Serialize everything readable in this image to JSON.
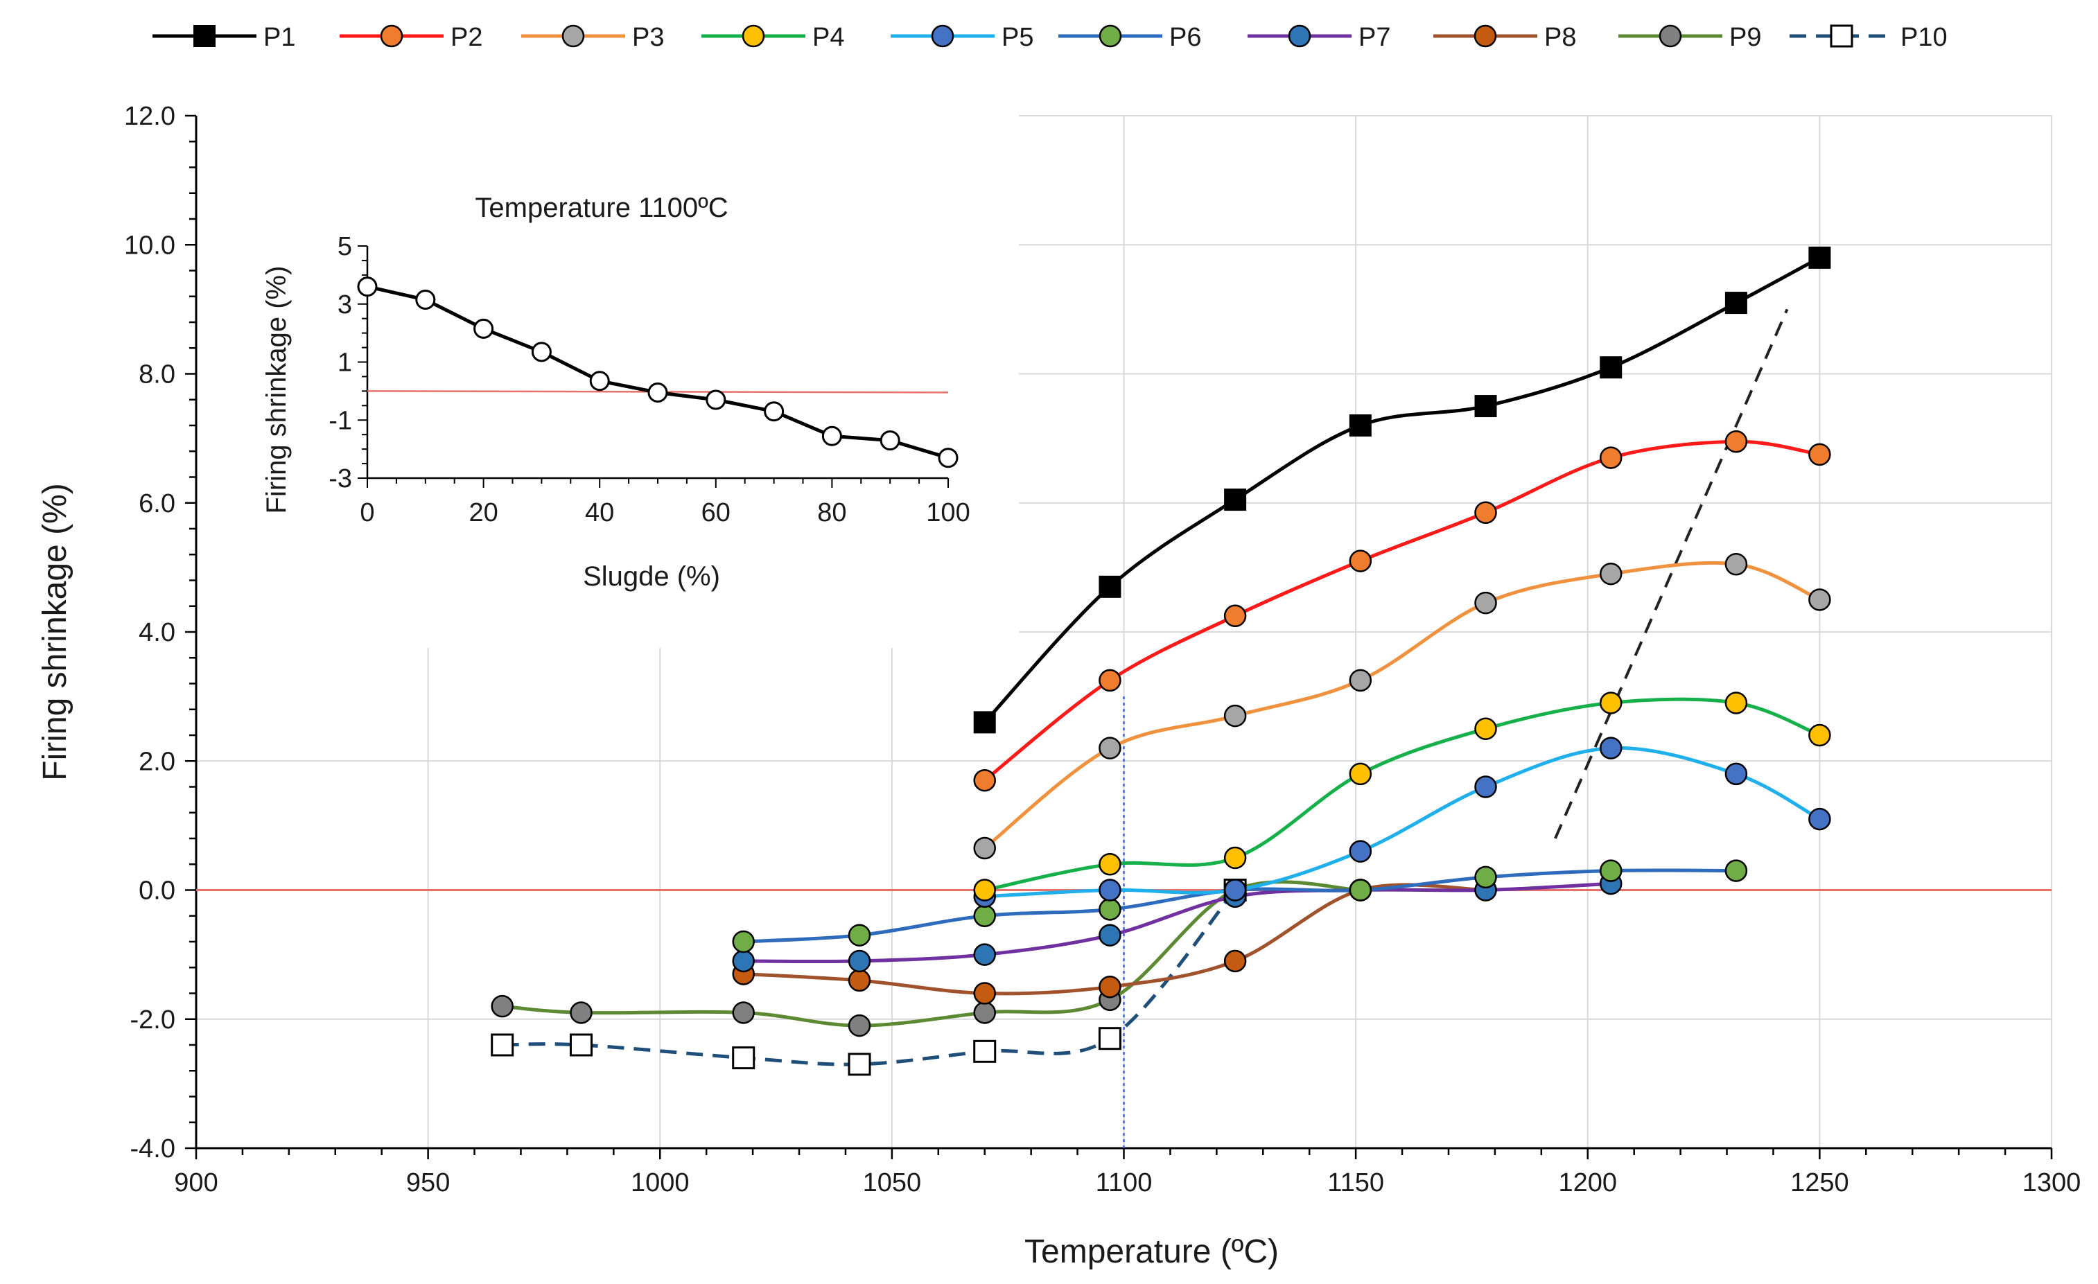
{
  "chart_data": [
    {
      "type": "line",
      "title": "",
      "xlabel": "Temperature   (ºC)",
      "ylabel": "Firing shrinkage   (%)",
      "xlim": [
        900,
        1300
      ],
      "ylim": [
        -4.0,
        12.0
      ],
      "x_ticks": [
        "900",
        "950",
        "1000",
        "1050",
        "1100",
        "1150",
        "1200",
        "1250",
        "1300"
      ],
      "y_ticks": [
        "-4.0",
        "-2.0",
        "0.0",
        "2.0",
        "4.0",
        "6.0",
        "8.0",
        "10.0",
        "12.0"
      ],
      "grid": "vertical and horizontal",
      "legend_position": "top",
      "reference_lines": [
        {
          "name": "zero line",
          "y": 0.0,
          "color": "#e8706a"
        },
        {
          "name": "1100 marker",
          "x": 1100,
          "color": "#3b5bdb",
          "style": "dotted"
        },
        {
          "name": "trend",
          "from": [
            1193,
            0.8
          ],
          "to": [
            1243,
            9.0
          ],
          "color": "#222222",
          "style": "dashed"
        }
      ],
      "series": [
        {
          "name": "P1",
          "color": "#000000",
          "marker": "square-filled",
          "x": [
            1070,
            1097,
            1124,
            1151,
            1178,
            1205,
            1232,
            1250
          ],
          "values": [
            2.6,
            4.7,
            6.05,
            7.2,
            7.5,
            8.1,
            9.1,
            9.8
          ]
        },
        {
          "name": "P2",
          "color": "#ff1a1a",
          "marker": "circle",
          "marker_fill": "#f07d2e",
          "x": [
            1070,
            1097,
            1124,
            1151,
            1178,
            1205,
            1232,
            1250
          ],
          "values": [
            1.7,
            3.25,
            4.25,
            5.1,
            5.85,
            6.7,
            6.95,
            6.75
          ]
        },
        {
          "name": "P3",
          "color": "#f0913e",
          "marker": "circle",
          "marker_fill": "#a6a6a6",
          "x": [
            1070,
            1097,
            1124,
            1151,
            1178,
            1205,
            1232,
            1250
          ],
          "values": [
            0.65,
            2.2,
            2.7,
            3.25,
            4.45,
            4.9,
            5.05,
            4.5
          ]
        },
        {
          "name": "P4",
          "color": "#15b04a",
          "marker": "circle",
          "marker_fill": "#ffc000",
          "x": [
            1070,
            1097,
            1124,
            1151,
            1178,
            1205,
            1232,
            1250
          ],
          "values": [
            0.0,
            0.4,
            0.5,
            1.8,
            2.5,
            2.9,
            2.9,
            2.4
          ]
        },
        {
          "name": "P5",
          "color": "#1fb0ec",
          "marker": "circle",
          "marker_fill": "#4472c4",
          "x": [
            1070,
            1097,
            1124,
            1151,
            1178,
            1205,
            1232,
            1250
          ],
          "values": [
            -0.1,
            0.0,
            0.0,
            0.6,
            1.6,
            2.2,
            1.8,
            1.1
          ]
        },
        {
          "name": "P6",
          "color": "#2e6bbd",
          "marker": "circle",
          "marker_fill": "#70ad47",
          "x": [
            1018,
            1043,
            1070,
            1097,
            1124,
            1151,
            1178,
            1205,
            1232
          ],
          "values": [
            -0.8,
            -0.7,
            -0.4,
            -0.3,
            0.0,
            0.0,
            0.2,
            0.3,
            0.3
          ]
        },
        {
          "name": "P7",
          "color": "#7030a0",
          "marker": "circle",
          "marker_fill": "#2e75b6",
          "x": [
            1018,
            1043,
            1070,
            1097,
            1124,
            1151,
            1178,
            1205
          ],
          "values": [
            -1.1,
            -1.1,
            -1.0,
            -0.7,
            -0.1,
            0.0,
            0.0,
            0.1
          ]
        },
        {
          "name": "P8",
          "color": "#a0522d",
          "marker": "circle",
          "marker_fill": "#c55a11",
          "x": [
            1018,
            1043,
            1070,
            1097,
            1124,
            1151,
            1178
          ],
          "values": [
            -1.3,
            -1.4,
            -1.6,
            -1.5,
            -1.1,
            0.0,
            0.0
          ]
        },
        {
          "name": "P9",
          "color": "#5c8a32",
          "marker": "circle",
          "marker_fill": "#808080",
          "x": [
            966,
            983,
            1018,
            1043,
            1070,
            1097,
            1124,
            1151
          ],
          "values": [
            -1.8,
            -1.9,
            -1.9,
            -2.1,
            -1.9,
            -1.7,
            0.0,
            0.0
          ]
        },
        {
          "name": "P10",
          "color": "#1f4e79",
          "marker": "square-open",
          "dashed": true,
          "x": [
            966,
            983,
            1018,
            1043,
            1070,
            1097,
            1124
          ],
          "values": [
            -2.4,
            -2.4,
            -2.6,
            -2.7,
            -2.5,
            -2.3,
            0.0
          ]
        }
      ]
    },
    {
      "type": "line",
      "title": "Temperature   1100ºC",
      "xlabel": "Slugde   (%)",
      "ylabel": "Firing shrinkage   (%)",
      "xlim": [
        0,
        100
      ],
      "ylim": [
        -3,
        5
      ],
      "x_ticks": [
        "0",
        "20",
        "40",
        "60",
        "80",
        "100"
      ],
      "y_ticks": [
        "-3",
        "-1",
        "1",
        "3",
        "5"
      ],
      "reference_lines": [
        {
          "name": "zero line",
          "y": 0.0,
          "color": "#e8706a"
        }
      ],
      "series": [
        {
          "name": "Firing shrinkage",
          "color": "#000000",
          "marker": "circle-open",
          "x": [
            0,
            10,
            20,
            30,
            40,
            50,
            60,
            70,
            80,
            90,
            100
          ],
          "values": [
            3.6,
            3.15,
            2.15,
            1.35,
            0.35,
            -0.05,
            -0.3,
            -0.7,
            -1.55,
            -1.7,
            -2.3
          ]
        }
      ]
    }
  ]
}
